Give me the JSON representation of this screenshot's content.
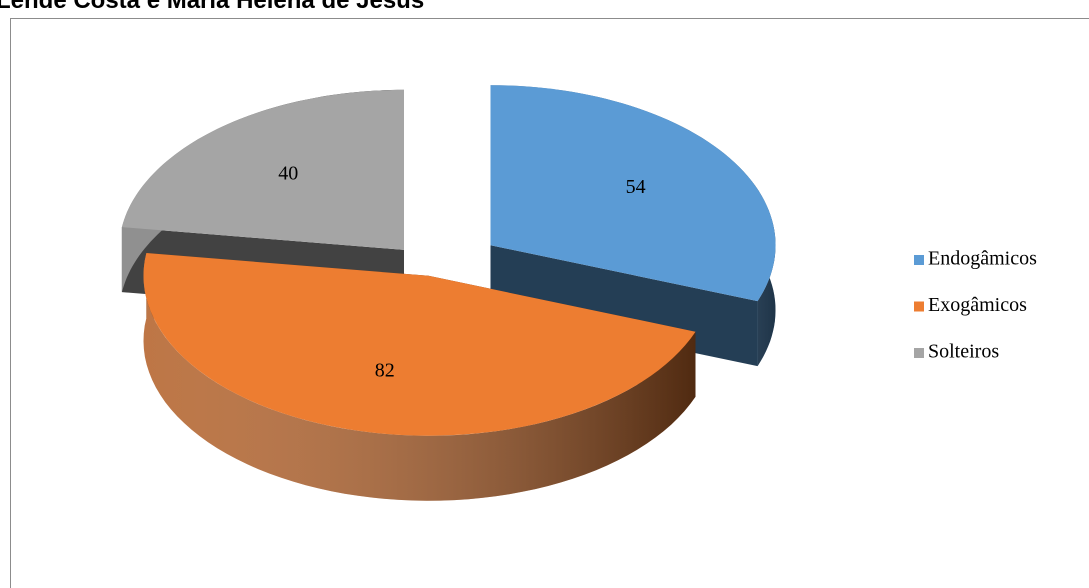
{
  "chart_data": {
    "type": "pie",
    "title": "Lende Costa e Maria Helena de Jesus",
    "categories": [
      "Endogâmicos",
      "Exogâmicos",
      "Solteiros"
    ],
    "values": [
      54,
      82,
      40
    ],
    "colors": [
      "#5b9bd5",
      "#ed7d31",
      "#a5a5a5"
    ],
    "legend": "right"
  }
}
